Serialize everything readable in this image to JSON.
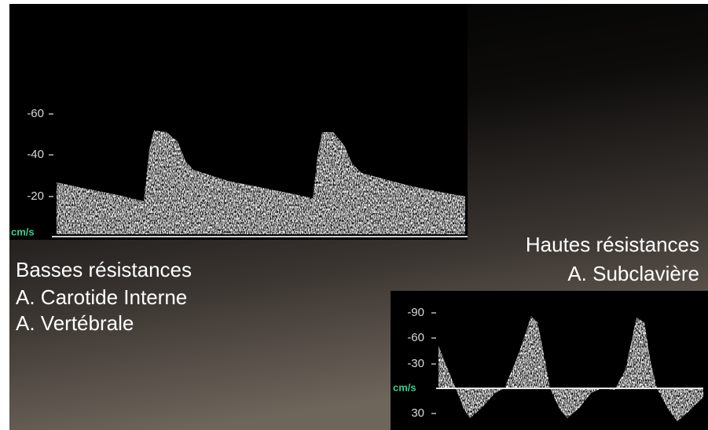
{
  "left_panel": {
    "y_ticks": [
      "-60",
      "-40",
      "-20"
    ],
    "unit": "cm/s"
  },
  "right_panel": {
    "y_ticks": [
      "-90",
      "-60",
      "-30",
      "30"
    ],
    "unit": "cm/s"
  },
  "captions": {
    "low_resistance": {
      "title": "Basses résistances",
      "arteries": [
        "A. Carotide Interne",
        "A. Vertébrale"
      ]
    },
    "high_resistance": {
      "title": "Hautes résistances",
      "arteries": [
        "A. Subclavière"
      ]
    }
  }
}
